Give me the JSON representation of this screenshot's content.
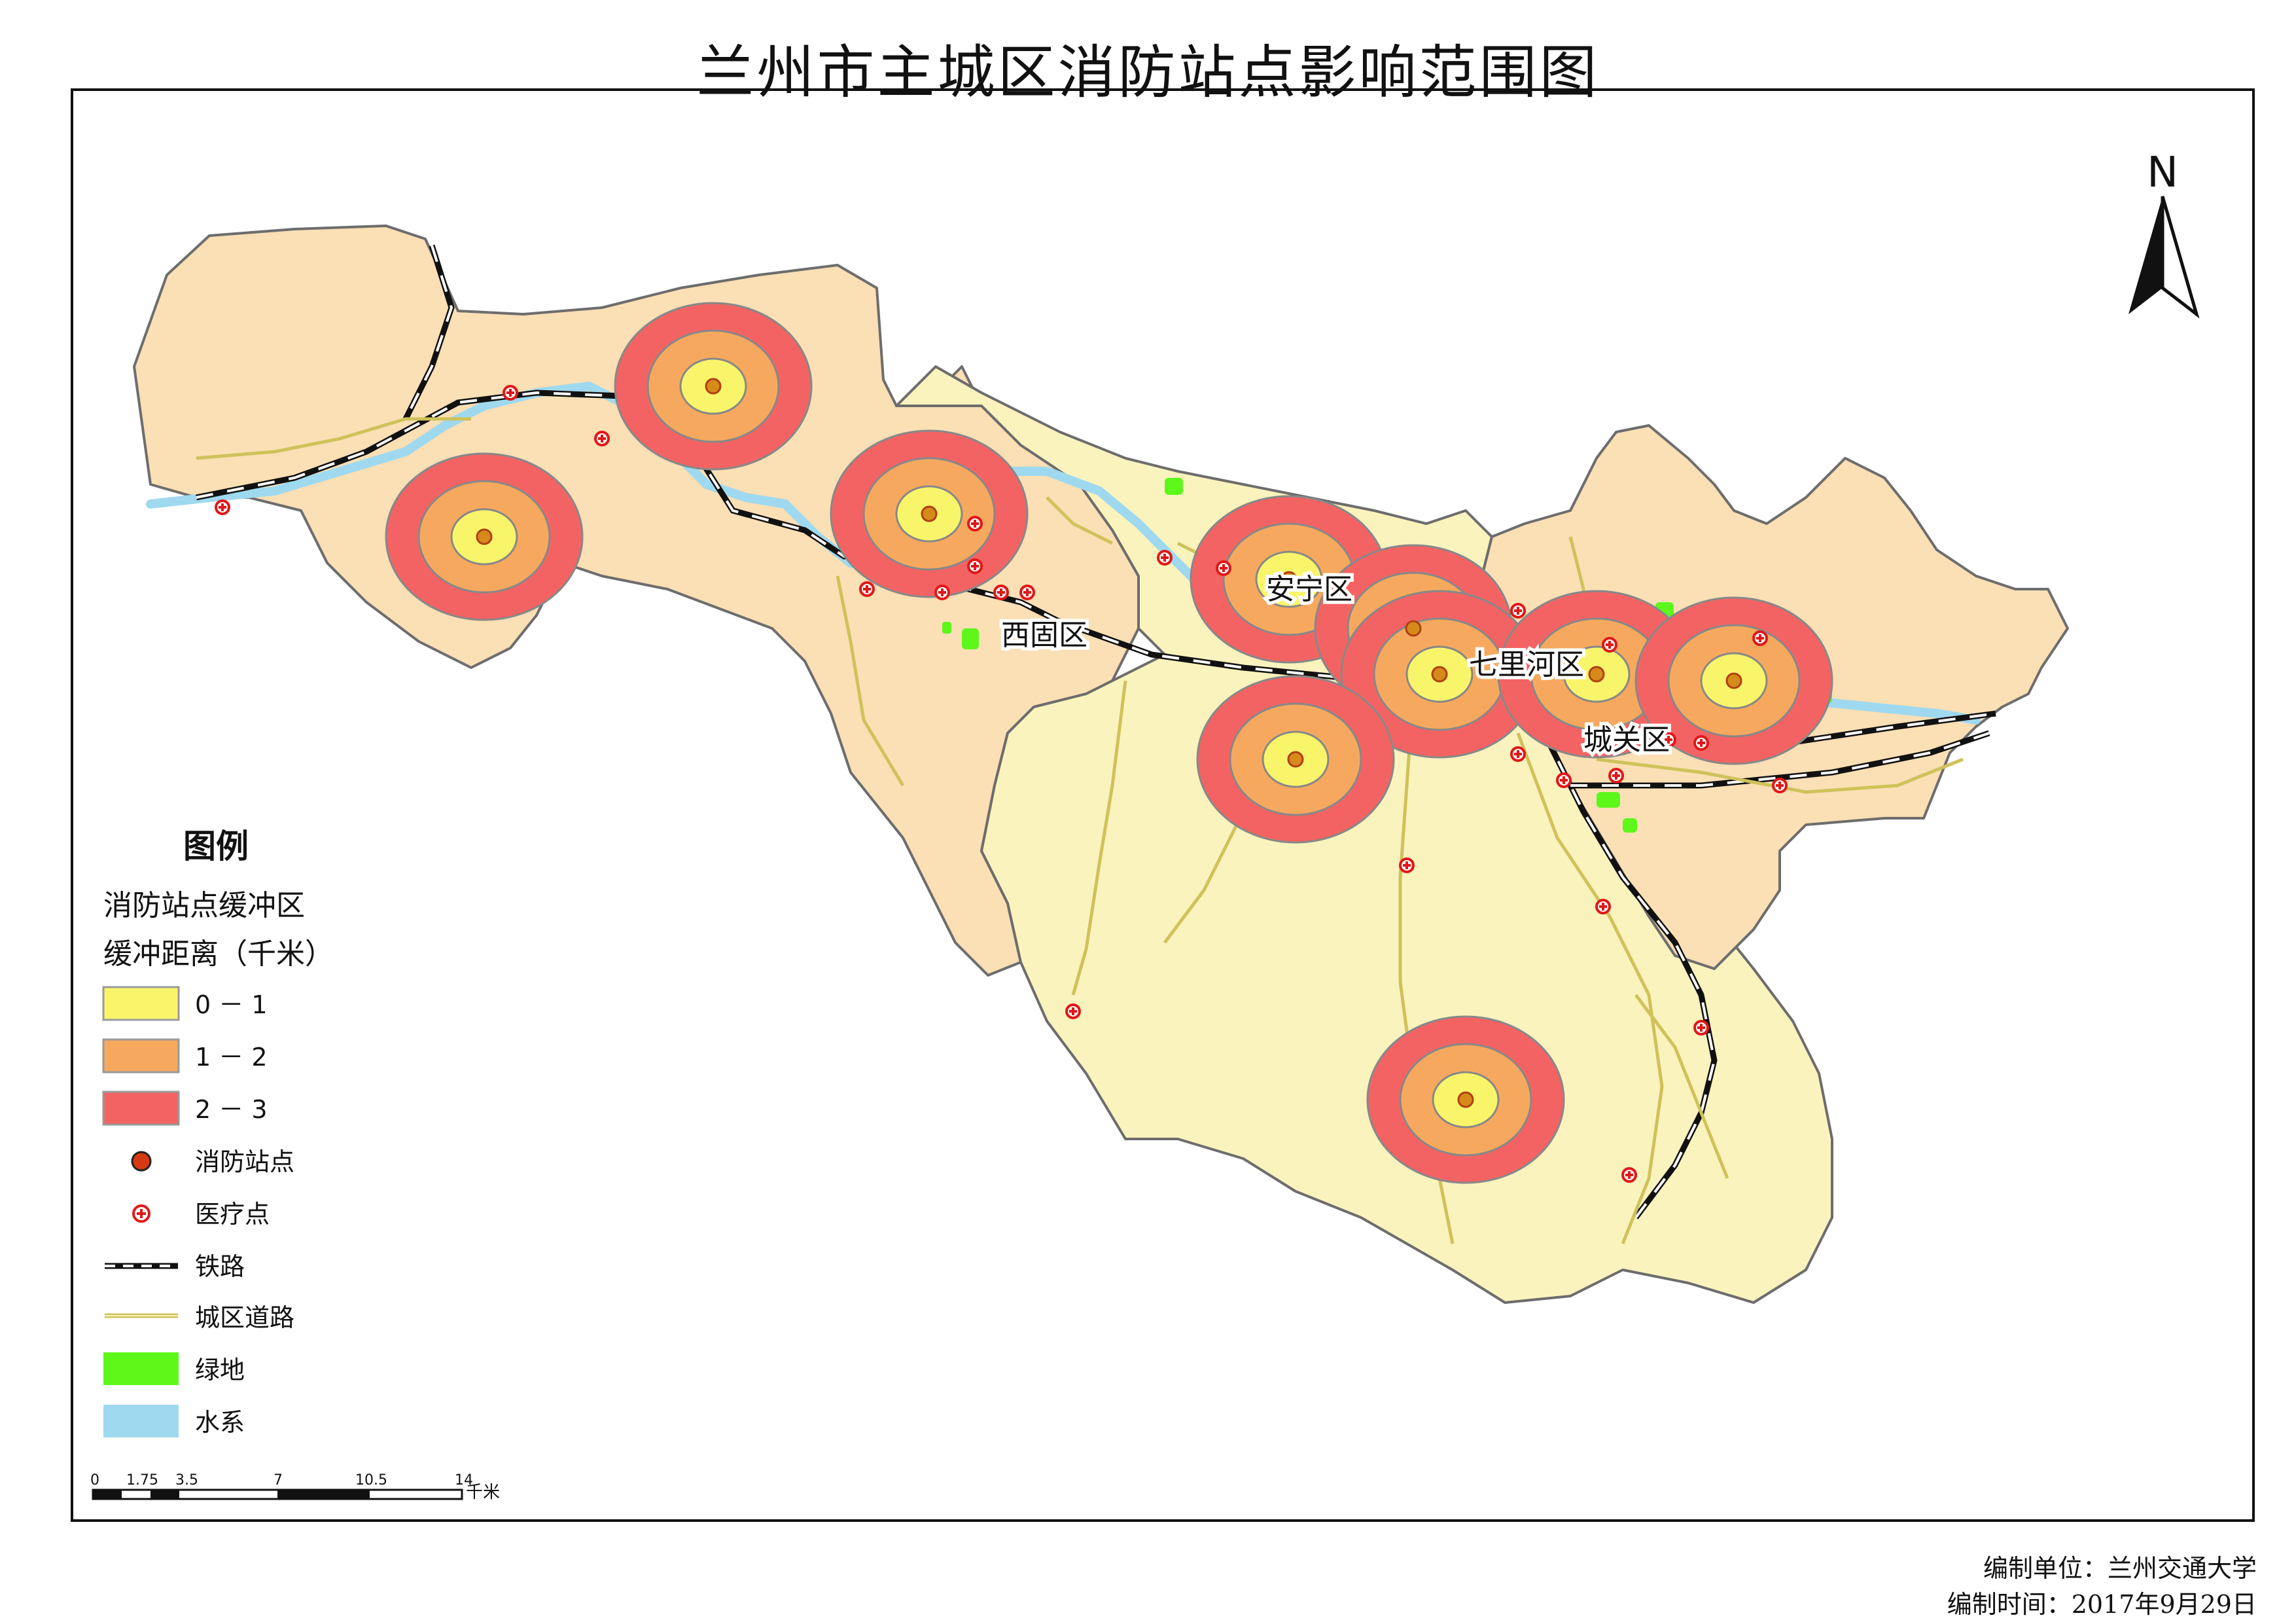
{
  "title": "兰州市主城区消防站点影响范围图",
  "north_arrow": {
    "label": "N",
    "icon": "north-arrow-icon"
  },
  "district_labels": {
    "xigu": "西固区",
    "anning": "安宁区",
    "qilihe": "七里河区",
    "chengguan": "城关区"
  },
  "legend": {
    "title": "图例",
    "group_title_1": "消防站点缓冲区",
    "group_title_2": "缓冲距离（千米）",
    "items": [
      {
        "label": "0 － 1",
        "color": "#f9f56b",
        "icon": "swatch"
      },
      {
        "label": "1 － 2",
        "color": "#f6a95e",
        "icon": "swatch"
      },
      {
        "label": "2 － 3",
        "color": "#f46363",
        "icon": "swatch"
      },
      {
        "label": "消防站点",
        "color": "#d63a12",
        "icon": "fire-station-icon"
      },
      {
        "label": "医疗点",
        "color": "#e01818",
        "icon": "medical-point-icon"
      },
      {
        "label": "铁路",
        "color": "#111111",
        "icon": "railway-icon"
      },
      {
        "label": "城区道路",
        "color": "#cfc25a",
        "icon": "road-icon"
      },
      {
        "label": "绿地",
        "color": "#5df71a",
        "icon": "swatch"
      },
      {
        "label": "水系",
        "color": "#9fd9ef",
        "icon": "swatch"
      }
    ]
  },
  "scale_bar": {
    "ticks": [
      "0",
      "1.75",
      "3.5",
      "7",
      "10.5",
      "14"
    ],
    "unit": "千米"
  },
  "credits": {
    "unit": "编制单位：兰州交通大学",
    "date": "编制时间：2017年9月29日"
  },
  "colors": {
    "district_peach": "#fbdfb5",
    "district_yellow": "#fbf3bd",
    "buffer_inner": "#f9f56b",
    "buffer_mid": "#f6a95e",
    "buffer_outer": "#f46363",
    "river": "#9fd9ef",
    "green": "#5df71a"
  }
}
